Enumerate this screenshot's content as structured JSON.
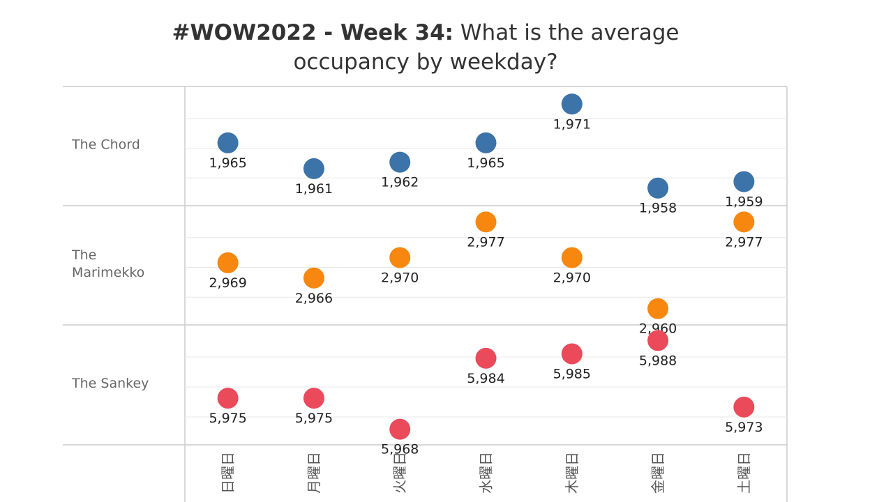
{
  "title": {
    "bold": "#WOW2022 - Week 34:",
    "normal": "What is the average",
    "line2": "occupancy by weekday?"
  },
  "colors": {
    "The Chord": "#3c73a8",
    "The Marimekko": "#f7870f",
    "The Sankey": "#ea4a5a",
    "grid": "#e8e8e8",
    "border": "#cccccc"
  },
  "chart_data": {
    "type": "scatter",
    "categories": [
      "日曜日",
      "月曜日",
      "火曜日",
      "水曜日",
      "木曜日",
      "金曜日",
      "土曜日"
    ],
    "rows": [
      {
        "name": "The Chord",
        "label_lines": [
          "The Chord"
        ],
        "ylim": [
          1957,
          1972
        ],
        "values": [
          1965,
          1961,
          1962,
          1965,
          1971,
          1958,
          1959
        ],
        "labels": [
          "1,965",
          "1,961",
          "1,962",
          "1,965",
          "1,971",
          "1,958",
          "1,959"
        ]
      },
      {
        "name": "The Marimekko",
        "label_lines": [
          "The",
          "Marimekko"
        ],
        "ylim": [
          2959,
          2978
        ],
        "values": [
          2969,
          2966,
          2970,
          2977,
          2970,
          2960,
          2977
        ],
        "labels": [
          "2,969",
          "2,966",
          "2,970",
          "2,977",
          "2,970",
          "2,960",
          "2,977"
        ]
      },
      {
        "name": "The Sankey",
        "label_lines": [
          "The Sankey"
        ],
        "ylim": [
          5967,
          5989
        ],
        "values": [
          5975,
          5975,
          5968,
          5984,
          5985,
          5988,
          5973
        ],
        "labels": [
          "5,975",
          "5,975",
          "5,968",
          "5,984",
          "5,985",
          "5,988",
          "5,973"
        ]
      }
    ],
    "grid": true
  }
}
